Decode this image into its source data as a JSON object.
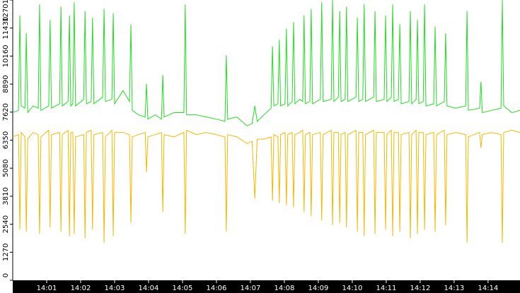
{
  "chart_data": {
    "type": "line",
    "x": [
      0.0,
      0.17,
      0.21,
      0.25,
      0.36,
      0.4,
      0.44,
      0.6,
      0.75,
      0.79,
      0.83,
      1.06,
      1.1,
      1.14,
      1.38,
      1.42,
      1.46,
      1.63,
      1.67,
      1.71,
      1.77,
      1.81,
      1.85,
      2.09,
      2.13,
      2.17,
      2.31,
      2.35,
      2.39,
      2.65,
      2.69,
      2.73,
      2.92,
      2.96,
      3.0,
      3.25,
      3.44,
      3.48,
      3.52,
      3.7,
      3.9,
      3.94,
      3.98,
      4.2,
      4.38,
      4.42,
      4.46,
      4.75,
      5.04,
      5.08,
      5.12,
      5.4,
      5.7,
      6.0,
      6.25,
      6.29,
      6.33,
      6.6,
      6.9,
      7.05,
      7.13,
      7.2,
      7.4,
      7.61,
      7.65,
      7.69,
      7.81,
      7.85,
      7.89,
      8.02,
      8.06,
      8.1,
      8.23,
      8.27,
      8.31,
      8.45,
      8.54,
      8.58,
      8.62,
      8.75,
      8.79,
      8.83,
      9.06,
      9.1,
      9.14,
      9.38,
      9.42,
      9.46,
      9.59,
      9.63,
      9.67,
      9.79,
      9.83,
      9.87,
      10.11,
      10.15,
      10.19,
      10.31,
      10.35,
      10.39,
      10.63,
      10.67,
      10.71,
      10.94,
      10.98,
      11.02,
      11.15,
      11.19,
      11.23,
      11.36,
      11.4,
      11.44,
      11.67,
      11.71,
      11.75,
      11.88,
      11.92,
      11.96,
      12.09,
      12.13,
      12.17,
      12.4,
      12.44,
      12.48,
      12.71,
      12.75,
      12.79,
      13.05,
      13.34,
      13.38,
      13.42,
      13.75,
      13.79,
      13.83,
      14.1,
      14.38,
      14.42,
      14.46,
      14.7,
      14.94
    ],
    "series": [
      {
        "color": "#22dd22",
        "values": [
          7600,
          7700,
          12000,
          7900,
          7800,
          11200,
          7600,
          7900,
          7800,
          12500,
          7700,
          7900,
          11800,
          7800,
          8000,
          12400,
          7900,
          8100,
          12000,
          7900,
          8000,
          12600,
          7900,
          8200,
          12200,
          8000,
          8100,
          11900,
          8000,
          8300,
          12300,
          8100,
          8200,
          12100,
          8000,
          8600,
          8100,
          11600,
          7700,
          7500,
          7400,
          8900,
          7300,
          7500,
          7300,
          9300,
          7400,
          7600,
          7600,
          12500,
          7500,
          7500,
          7400,
          7300,
          7200,
          10200,
          7300,
          7400,
          7000,
          7100,
          7900,
          7200,
          7500,
          7800,
          10600,
          7900,
          8000,
          10900,
          7900,
          8000,
          11400,
          7900,
          8100,
          11700,
          8000,
          8200,
          8100,
          12000,
          8000,
          8100,
          12300,
          8000,
          8200,
          12600,
          8100,
          8200,
          12700,
          8100,
          8300,
          12200,
          8100,
          8200,
          12400,
          8100,
          8300,
          11900,
          8100,
          8200,
          12500,
          8100,
          8300,
          12200,
          8100,
          8200,
          12000,
          8100,
          8300,
          12500,
          8100,
          8200,
          11600,
          8000,
          8100,
          12200,
          8000,
          8200,
          11800,
          8000,
          8100,
          12500,
          7900,
          8000,
          11500,
          7900,
          8100,
          11200,
          7900,
          7800,
          7900,
          12200,
          7700,
          7800,
          9000,
          7600,
          7700,
          7800,
          12700,
          7900,
          7600,
          7700
        ]
      },
      {
        "color": "#f5b800",
        "values": [
          6500,
          6600,
          2300,
          6700,
          6500,
          2200,
          6400,
          6700,
          6600,
          2100,
          6500,
          6800,
          2400,
          6600,
          6700,
          2200,
          6600,
          6800,
          2000,
          6700,
          6700,
          2100,
          6500,
          6600,
          1900,
          6700,
          6800,
          2300,
          6600,
          6700,
          1700,
          6500,
          6800,
          2000,
          6700,
          6700,
          6600,
          2600,
          6500,
          6600,
          6700,
          4900,
          6500,
          6600,
          6700,
          3100,
          6600,
          6500,
          6700,
          2100,
          6800,
          6600,
          6700,
          6600,
          6500,
          2200,
          6600,
          6500,
          6200,
          6300,
          3700,
          6400,
          6400,
          6500,
          3600,
          6600,
          6500,
          3500,
          6600,
          6700,
          3400,
          6600,
          6700,
          3300,
          6600,
          6700,
          6800,
          3100,
          6600,
          6700,
          2900,
          6600,
          6700,
          2700,
          6600,
          6800,
          2500,
          6700,
          6700,
          2600,
          6600,
          6700,
          2400,
          6600,
          6800,
          2200,
          6700,
          6700,
          2000,
          6600,
          6800,
          2100,
          6700,
          6700,
          2300,
          6600,
          6800,
          2000,
          6700,
          6700,
          2200,
          6600,
          6700,
          1900,
          6600,
          6800,
          2100,
          6700,
          6700,
          2300,
          6600,
          6700,
          2200,
          6600,
          6800,
          2500,
          6600,
          6700,
          6600,
          1700,
          6500,
          6700,
          6000,
          6600,
          6700,
          6600,
          1700,
          6700,
          6800,
          6700
        ]
      }
    ],
    "xlim": [
      0,
      14.94
    ],
    "xticks": [
      {
        "value": 1,
        "label": "14:01"
      },
      {
        "value": 2,
        "label": "14:02"
      },
      {
        "value": 3,
        "label": "14:03"
      },
      {
        "value": 4,
        "label": "14:04"
      },
      {
        "value": 5,
        "label": "14:05"
      },
      {
        "value": 6,
        "label": "14:06"
      },
      {
        "value": 7,
        "label": "14:07"
      },
      {
        "value": 8,
        "label": "14:08"
      },
      {
        "value": 9,
        "label": "14:09"
      },
      {
        "value": 10,
        "label": "14:10"
      },
      {
        "value": 11,
        "label": "14:11"
      },
      {
        "value": 12,
        "label": "14:12"
      },
      {
        "value": 13,
        "label": "14:13"
      },
      {
        "value": 14,
        "label": "14:14"
      }
    ],
    "ylim": [
      0,
      12701
    ],
    "yticks": [
      0,
      1270,
      2540,
      3810,
      5080,
      6350,
      7620,
      8890,
      10160,
      11430,
      12701
    ]
  }
}
